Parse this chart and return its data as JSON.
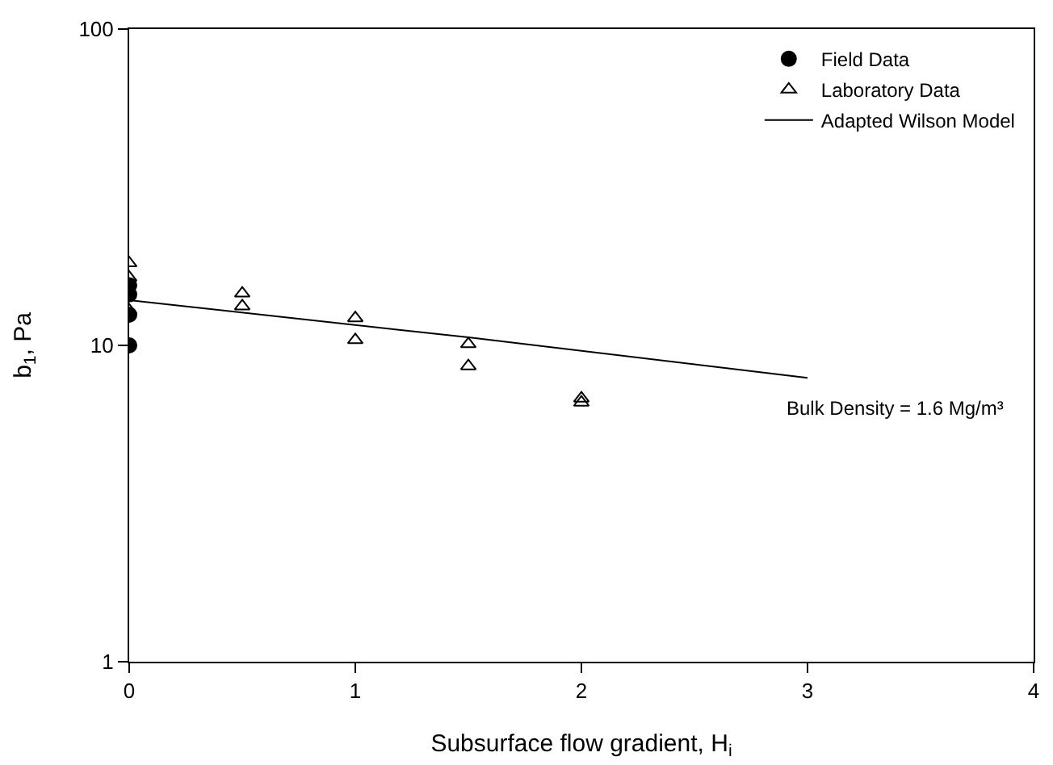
{
  "chart_data": {
    "type": "scatter",
    "xlabel": "Subsurface flow gradient, H$_{i}$",
    "ylabel": "b$_{1}$, Pa",
    "series": [
      {
        "name": "Field Data",
        "marker": "circle",
        "color": "#000000",
        "x": [
          0,
          0,
          0,
          0
        ],
        "values": [
          10,
          12.5,
          14.5,
          15.5
        ]
      },
      {
        "name": "Laboratory Data",
        "marker": "triangle",
        "color": "#000000",
        "x": [
          0,
          0,
          0,
          0.5,
          0.5,
          1,
          1,
          1.5,
          1.5,
          2,
          2
        ],
        "values": [
          18.2,
          16.4,
          12.9,
          14.6,
          13.3,
          12.2,
          10.4,
          10.1,
          8.6,
          6.8,
          6.6
        ]
      },
      {
        "name": "Adapted Wilson Model",
        "type": "line",
        "marker": "none",
        "color": "#000000",
        "x": [
          0,
          1.5,
          3
        ],
        "values": [
          13.9,
          10.6,
          7.9
        ]
      }
    ],
    "annotations": [
      "Bulk Density = 1.6 Mg/m³"
    ],
    "log": "y",
    "xlim": [
      0,
      4
    ],
    "xticks": [
      0,
      1,
      2,
      3,
      4
    ],
    "ylim": [
      1,
      100
    ],
    "yticks": [
      1,
      10,
      100
    ],
    "legend": "top right"
  }
}
